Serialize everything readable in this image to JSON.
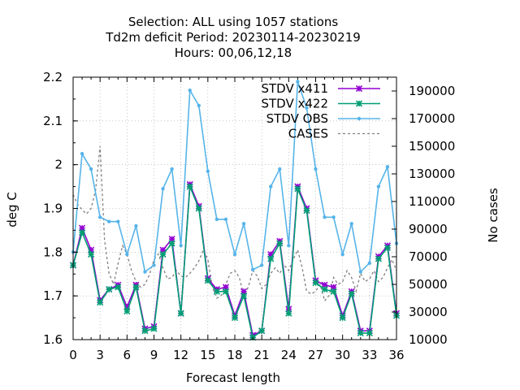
{
  "chart_data": {
    "type": "line",
    "title_lines": [
      "Selection: ALL using  1057 stations",
      "Td2m deficit   Period: 20230114-20230219",
      "Hours:  00,06,12,18"
    ],
    "xlabel": "Forecast length",
    "ylabel": "deg C",
    "y2label": "No cases",
    "xlim": [
      0,
      36
    ],
    "ylim": [
      1.6,
      2.2
    ],
    "y2lim": [
      10000,
      200000
    ],
    "xticks": [
      "0",
      "3",
      "6",
      "9",
      "12",
      "15",
      "18",
      "21",
      "24",
      "27",
      "30",
      "33",
      "36"
    ],
    "yticks": [
      "1.6",
      "1.7",
      "1.8",
      "1.9",
      "2",
      "2.1",
      "2.2"
    ],
    "y2ticks": [
      "10000",
      "30000",
      "50000",
      "70000",
      "90000",
      "110000",
      "130000",
      "150000",
      "170000",
      "190000"
    ],
    "grid": true,
    "legend_position": "top-right",
    "x": [
      0,
      1,
      2,
      3,
      4,
      5,
      6,
      7,
      8,
      9,
      10,
      11,
      12,
      13,
      14,
      15,
      16,
      17,
      18,
      19,
      20,
      21,
      22,
      23,
      24,
      25,
      26,
      27,
      28,
      29,
      30,
      31,
      32,
      33,
      34,
      35,
      36
    ],
    "series": [
      {
        "name": "STDV x411",
        "color": "#9400d3",
        "axis": "y",
        "marker": "x",
        "values": [
          1.77,
          1.855,
          1.805,
          1.69,
          1.715,
          1.725,
          1.675,
          1.725,
          1.625,
          1.63,
          1.805,
          1.83,
          1.66,
          1.955,
          1.905,
          1.74,
          1.715,
          1.72,
          1.655,
          1.71,
          1.61,
          1.62,
          1.795,
          1.825,
          1.67,
          1.95,
          1.9,
          1.735,
          1.725,
          1.72,
          1.655,
          1.71,
          1.62,
          1.62,
          1.79,
          1.815,
          1.66
        ]
      },
      {
        "name": "STDV x422",
        "color": "#009e73",
        "axis": "y",
        "marker": "x",
        "values": [
          1.77,
          1.845,
          1.795,
          1.685,
          1.715,
          1.72,
          1.665,
          1.72,
          1.62,
          1.625,
          1.795,
          1.82,
          1.66,
          1.95,
          1.9,
          1.735,
          1.71,
          1.71,
          1.65,
          1.7,
          1.605,
          1.62,
          1.785,
          1.82,
          1.66,
          1.945,
          1.895,
          1.73,
          1.715,
          1.71,
          1.65,
          1.705,
          1.615,
          1.615,
          1.785,
          1.81,
          1.655
        ]
      },
      {
        "name": "STDV OBS",
        "color": "#56b4e9",
        "axis": "y",
        "marker": "dot",
        "values": [
          1.8,
          2.025,
          1.99,
          1.88,
          1.87,
          1.87,
          1.795,
          1.86,
          1.755,
          1.77,
          1.945,
          1.99,
          1.815,
          2.17,
          2.135,
          1.985,
          1.875,
          1.875,
          1.795,
          1.865,
          1.76,
          1.77,
          1.95,
          1.99,
          1.815,
          2.19,
          2.13,
          1.99,
          1.88,
          1.88,
          1.795,
          1.865,
          1.755,
          1.775,
          1.95,
          1.995,
          1.82
        ]
      },
      {
        "name": "CASES",
        "color": "#808080",
        "axis": "y2",
        "marker": "none",
        "dashed": true,
        "x": [
          0,
          0.5,
          1,
          1.5,
          2,
          2.5,
          3,
          3.5,
          4,
          4.5,
          5,
          5.5,
          6,
          6.5,
          7,
          7.5,
          8,
          8.5,
          9,
          9.5,
          10,
          10.5,
          11,
          11.5,
          12,
          12.5,
          13,
          13.5,
          14,
          14.5,
          15,
          15.5,
          16,
          16.5,
          17,
          17.5,
          18,
          18.5,
          19,
          19.5,
          20,
          20.5,
          21,
          21.5,
          22,
          22.5,
          23,
          23.5,
          24,
          24.5,
          25,
          25.5,
          26,
          26.5,
          27,
          27.5,
          28,
          28.5,
          29,
          29.5,
          30,
          30.5,
          31,
          31.5,
          32,
          32.5,
          33,
          33.5,
          34,
          34.5,
          35,
          35.5,
          36
        ],
        "values": [
          115000,
          108000,
          104000,
          101000,
          105000,
          118000,
          150000,
          82000,
          58000,
          50000,
          65000,
          78000,
          72000,
          60000,
          52000,
          48000,
          50000,
          57000,
          68000,
          72000,
          62000,
          54000,
          55000,
          60000,
          56000,
          55000,
          58000,
          62000,
          67000,
          75000,
          68000,
          48000,
          40000,
          42000,
          50000,
          58000,
          60000,
          55000,
          42000,
          48000,
          60000,
          56000,
          47000,
          50000,
          58000,
          62000,
          58000,
          64000,
          60000,
          68000,
          75000,
          62000,
          45000,
          43000,
          45000,
          50000,
          38000,
          42000,
          55000,
          50000,
          52000,
          60000,
          55000,
          45000,
          58000,
          52000,
          54000,
          60000,
          52000,
          55000,
          62000,
          68000,
          60000
        ]
      }
    ]
  }
}
